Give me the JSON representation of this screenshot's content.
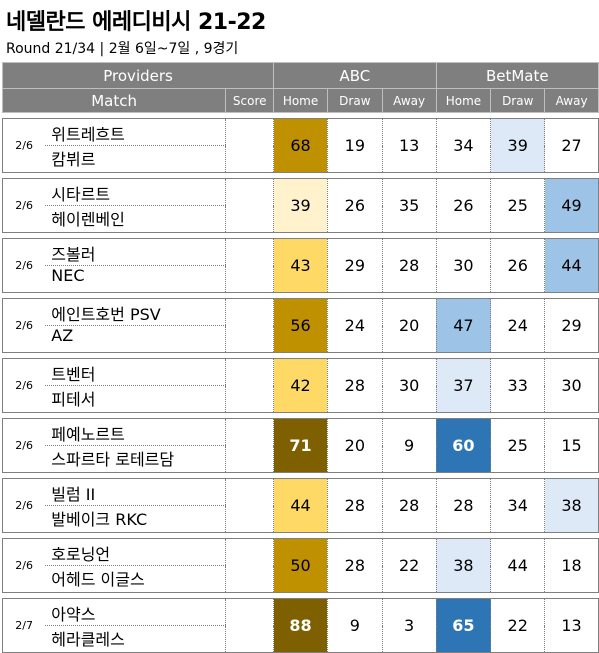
{
  "title": "네델란드 에레디비시 21-22",
  "subtitle": "Round 21/34 | 2월 6일~7일 , 9경기",
  "header": {
    "providers_label": "Providers",
    "match_label": "Match",
    "score_label": "Score",
    "provider_abc": "ABC",
    "provider_betmate": "BetMate",
    "home_label": "Home",
    "draw_label": "Draw",
    "away_label": "Away"
  },
  "matches": [
    {
      "date": "2/6",
      "home": "위트레흐트",
      "away": "캄뷔르",
      "abc": [
        "68",
        "19",
        "13"
      ],
      "betmate": [
        "34",
        "39",
        "27"
      ],
      "abc_colors": [
        "#bf9000",
        "#ffffff",
        "#ffffff"
      ],
      "betmate_colors": [
        "#ffffff",
        "#dde9f7",
        "#ffffff"
      ]
    },
    {
      "date": "2/6",
      "home": "시타르트",
      "away": "헤이렌베인",
      "abc": [
        "39",
        "26",
        "35"
      ],
      "betmate": [
        "26",
        "25",
        "49"
      ],
      "abc_colors": [
        "#fff2cc",
        "#ffffff",
        "#ffffff"
      ],
      "betmate_colors": [
        "#ffffff",
        "#ffffff",
        "#9dc3e6"
      ]
    },
    {
      "date": "2/6",
      "home": "즈볼러",
      "away": "NEC",
      "abc": [
        "43",
        "29",
        "28"
      ],
      "betmate": [
        "30",
        "26",
        "44"
      ],
      "abc_colors": [
        "#ffd966",
        "#ffffff",
        "#ffffff"
      ],
      "betmate_colors": [
        "#ffffff",
        "#ffffff",
        "#9dc3e6"
      ]
    },
    {
      "date": "2/6",
      "home": "에인트호번 PSV",
      "away": "AZ",
      "abc": [
        "56",
        "24",
        "20"
      ],
      "betmate": [
        "47",
        "24",
        "29"
      ],
      "abc_colors": [
        "#bf9000",
        "#ffffff",
        "#ffffff"
      ],
      "betmate_colors": [
        "#9dc3e6",
        "#ffffff",
        "#ffffff"
      ]
    },
    {
      "date": "2/6",
      "home": "트벤터",
      "away": "피테서",
      "abc": [
        "42",
        "28",
        "30"
      ],
      "betmate": [
        "37",
        "33",
        "30"
      ],
      "abc_colors": [
        "#ffd966",
        "#ffffff",
        "#ffffff"
      ],
      "betmate_colors": [
        "#dde9f7",
        "#ffffff",
        "#ffffff"
      ]
    },
    {
      "date": "2/6",
      "home": "페예노르트",
      "away": "스파르타 로테르담",
      "abc": [
        "71",
        "20",
        "9"
      ],
      "betmate": [
        "60",
        "25",
        "15"
      ],
      "abc_colors": [
        "#7f6000",
        "#ffffff",
        "#ffffff"
      ],
      "betmate_colors": [
        "#2e75b6",
        "#ffffff",
        "#ffffff"
      ]
    },
    {
      "date": "2/6",
      "home": "빌럼 II",
      "away": "발베이크 RKC",
      "abc": [
        "44",
        "28",
        "28"
      ],
      "betmate": [
        "28",
        "34",
        "38"
      ],
      "abc_colors": [
        "#ffd966",
        "#ffffff",
        "#ffffff"
      ],
      "betmate_colors": [
        "#ffffff",
        "#ffffff",
        "#dde9f7"
      ]
    },
    {
      "date": "2/6",
      "home": "호로닝언",
      "away": "어헤드 이글스",
      "abc": [
        "50",
        "28",
        "22"
      ],
      "betmate": [
        "38",
        "44",
        "18"
      ],
      "abc_colors": [
        "#bf9000",
        "#ffffff",
        "#ffffff"
      ],
      "betmate_colors": [
        "#dde9f7",
        "#ffffff",
        "#ffffff"
      ]
    },
    {
      "date": "2/7",
      "home": "아약스",
      "away": "헤라클레스",
      "abc": [
        "88",
        "9",
        "3"
      ],
      "betmate": [
        "65",
        "22",
        "13"
      ],
      "abc_colors": [
        "#7f6000",
        "#ffffff",
        "#ffffff"
      ],
      "betmate_colors": [
        "#2e75b6",
        "#ffffff",
        "#ffffff"
      ]
    }
  ]
}
